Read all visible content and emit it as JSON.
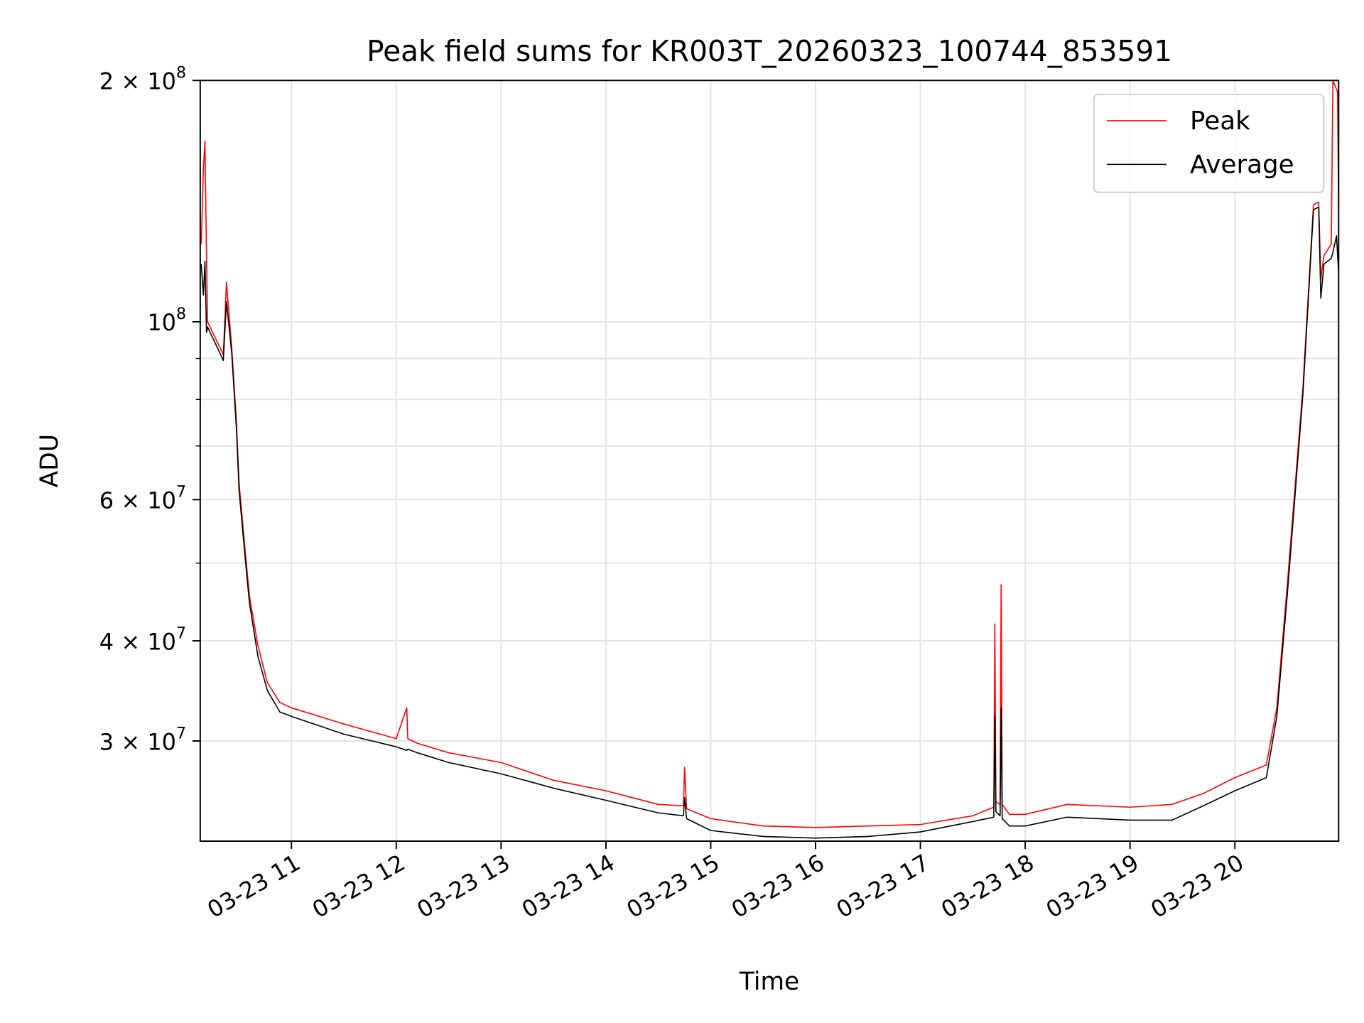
{
  "chart_data": {
    "type": "line",
    "title": "Peak field sums for KR003T_20260323_100744_853591",
    "xlabel": "Time",
    "ylabel": "ADU",
    "yscale": "log",
    "ylim": [
      22500000,
      200000000
    ],
    "xlim_hours": [
      10.13,
      20.99
    ],
    "grid": true,
    "legend_position": "top-right",
    "x_ticks": [
      {
        "hour": 11,
        "label": "03-23 11"
      },
      {
        "hour": 12,
        "label": "03-23 12"
      },
      {
        "hour": 13,
        "label": "03-23 13"
      },
      {
        "hour": 14,
        "label": "03-23 14"
      },
      {
        "hour": 15,
        "label": "03-23 15"
      },
      {
        "hour": 16,
        "label": "03-23 16"
      },
      {
        "hour": 17,
        "label": "03-23 17"
      },
      {
        "hour": 18,
        "label": "03-23 18"
      },
      {
        "hour": 19,
        "label": "03-23 19"
      },
      {
        "hour": 20,
        "label": "03-23 20"
      }
    ],
    "y_ticks": [
      {
        "value": 200000000,
        "mant": "2 × 10",
        "exp": "8"
      },
      {
        "value": 100000000,
        "mant": "10",
        "exp": "8"
      },
      {
        "value": 60000000,
        "mant": "6 × 10",
        "exp": "7"
      },
      {
        "value": 40000000,
        "mant": "4 × 10",
        "exp": "7"
      },
      {
        "value": 30000000,
        "mant": "3 × 10",
        "exp": "7"
      }
    ],
    "y_minor_ticks": [
      90000000,
      80000000,
      70000000,
      50000000
    ],
    "series": [
      {
        "name": "Peak",
        "color": "#ff0000",
        "x": [
          10.14,
          10.16,
          10.175,
          10.19,
          10.2,
          10.35,
          10.38,
          10.43,
          10.475,
          10.5,
          10.56,
          10.6,
          10.68,
          10.77,
          10.89,
          11.0,
          11.5,
          12.0,
          12.1,
          12.11,
          12.2,
          12.5,
          13.0,
          13.5,
          14.0,
          14.5,
          14.74,
          14.75,
          14.77,
          15.0,
          15.5,
          16.0,
          16.5,
          17.0,
          17.5,
          17.7,
          17.71,
          17.72,
          17.76,
          17.77,
          17.78,
          17.85,
          18.0,
          18.4,
          19.0,
          19.4,
          19.7,
          20.0,
          20.3,
          20.4,
          20.5,
          20.65,
          20.75,
          20.8,
          20.82,
          20.85,
          20.92,
          20.935,
          20.97,
          20.98,
          20.99
        ],
        "y": [
          125000000,
          155000000,
          168000000,
          120000000,
          100000000,
          91000000,
          112000000,
          93000000,
          75000000,
          63000000,
          51500000,
          45500000,
          39500000,
          35500000,
          33500000,
          33000000,
          31500000,
          30200000,
          33000000,
          30200000,
          29800000,
          29000000,
          28200000,
          26800000,
          26000000,
          25000000,
          24900000,
          27800000,
          24700000,
          24000000,
          23500000,
          23400000,
          23500000,
          23600000,
          24200000,
          24800000,
          42000000,
          25200000,
          25000000,
          47000000,
          25000000,
          24300000,
          24300000,
          25000000,
          24800000,
          25000000,
          25800000,
          27000000,
          28000000,
          33000000,
          47000000,
          83000000,
          140000000,
          141000000,
          113000000,
          121000000,
          125000000,
          200000000,
          195000000,
          193000000,
          135000000
        ]
      },
      {
        "name": "Average",
        "color": "#000000",
        "x": [
          10.14,
          10.16,
          10.175,
          10.19,
          10.2,
          10.35,
          10.38,
          10.43,
          10.475,
          10.5,
          10.56,
          10.6,
          10.68,
          10.77,
          10.89,
          11.0,
          11.5,
          12.0,
          12.1,
          12.11,
          12.2,
          12.5,
          13.0,
          13.5,
          14.0,
          14.5,
          14.74,
          14.75,
          14.77,
          15.0,
          15.5,
          16.0,
          16.5,
          17.0,
          17.5,
          17.7,
          17.71,
          17.72,
          17.76,
          17.77,
          17.78,
          17.85,
          18.0,
          18.4,
          19.0,
          19.4,
          19.7,
          20.0,
          20.3,
          20.4,
          20.5,
          20.65,
          20.75,
          20.8,
          20.82,
          20.85,
          20.92,
          20.935,
          20.97,
          20.98,
          20.99
        ],
        "y": [
          118000000,
          108000000,
          119000000,
          97000000,
          98500000,
          89500000,
          106000000,
          91500000,
          73600000,
          61700000,
          50500000,
          44600000,
          38300000,
          34700000,
          32600000,
          32200000,
          30600000,
          29500000,
          29200000,
          29300000,
          29000000,
          28200000,
          27300000,
          26200000,
          25300000,
          24400000,
          24200000,
          25500000,
          24000000,
          23200000,
          22800000,
          22700000,
          22800000,
          23100000,
          23800000,
          24100000,
          32200000,
          24500000,
          24200000,
          33000000,
          24000000,
          23500000,
          23500000,
          24100000,
          23900000,
          23900000,
          24900000,
          26000000,
          27000000,
          32200000,
          45700000,
          81400000,
          138000000,
          139000000,
          107000000,
          118000000,
          120000000,
          122000000,
          128000000,
          121000000,
          115000000
        ]
      }
    ]
  }
}
